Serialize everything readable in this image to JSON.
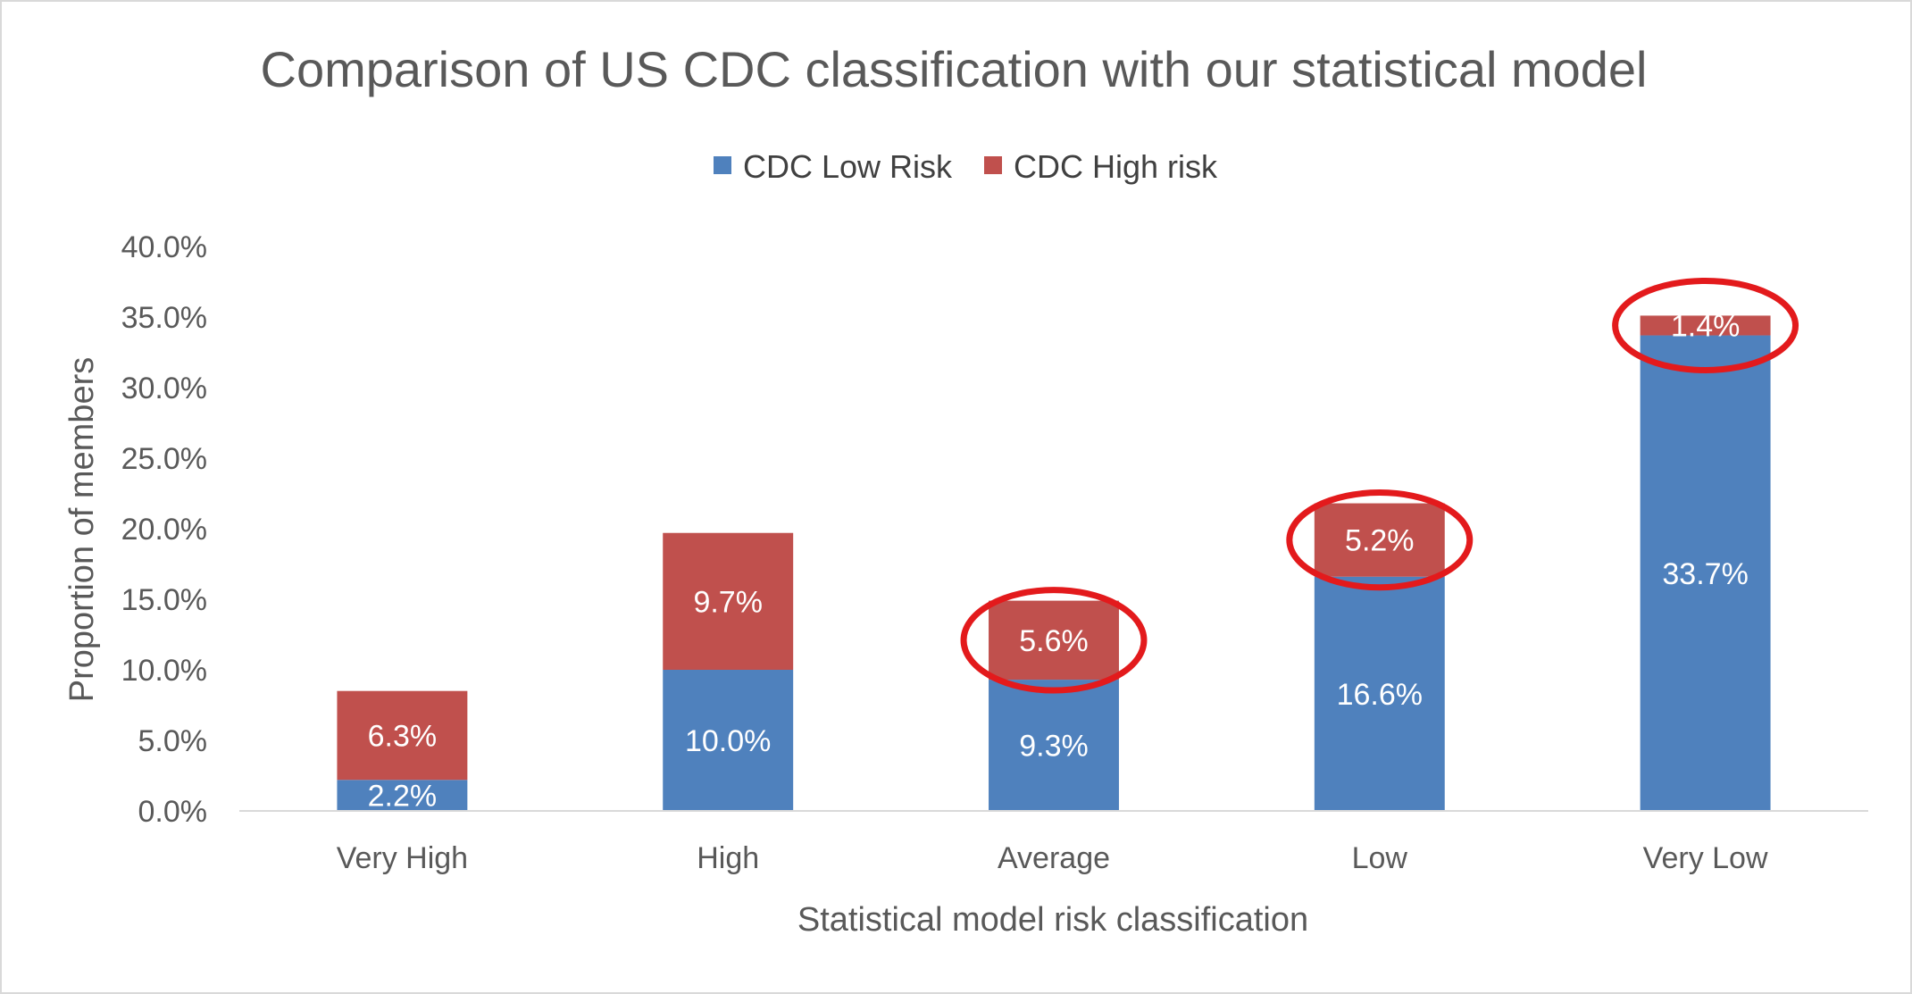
{
  "chart_data": {
    "type": "bar",
    "stacked": true,
    "title": "Comparison of US CDC classification with our statistical model",
    "xlabel": "Statistical model risk classification",
    "ylabel": "Proportion of members",
    "categories": [
      "Very High",
      "High",
      "Average",
      "Low",
      "Very Low"
    ],
    "series": [
      {
        "name": "CDC Low Risk",
        "color": "#4f81bd",
        "values": [
          2.2,
          10.0,
          9.3,
          16.6,
          33.7
        ],
        "labels": [
          "2.2%",
          "10.0%",
          "9.3%",
          "16.6%",
          "33.7%"
        ]
      },
      {
        "name": "CDC High risk",
        "color": "#c0504d",
        "values": [
          6.3,
          9.7,
          5.6,
          5.2,
          1.4
        ],
        "labels": [
          "6.3%",
          "9.7%",
          "5.6%",
          "5.2%",
          "1.4%"
        ]
      }
    ],
    "ylim": [
      0,
      40
    ],
    "yticks": [
      0,
      5,
      10,
      15,
      20,
      25,
      30,
      35,
      40
    ],
    "ytick_labels": [
      "0.0%",
      "5.0%",
      "10.0%",
      "15.0%",
      "20.0%",
      "25.0%",
      "30.0%",
      "35.0%",
      "40.0%"
    ],
    "grid": false,
    "legend_position": "top-center",
    "annotations": {
      "type": "ellipse-highlight",
      "color": "#e31a1c",
      "categories": [
        "Average",
        "Low",
        "Very Low"
      ],
      "series": "CDC High risk"
    }
  }
}
